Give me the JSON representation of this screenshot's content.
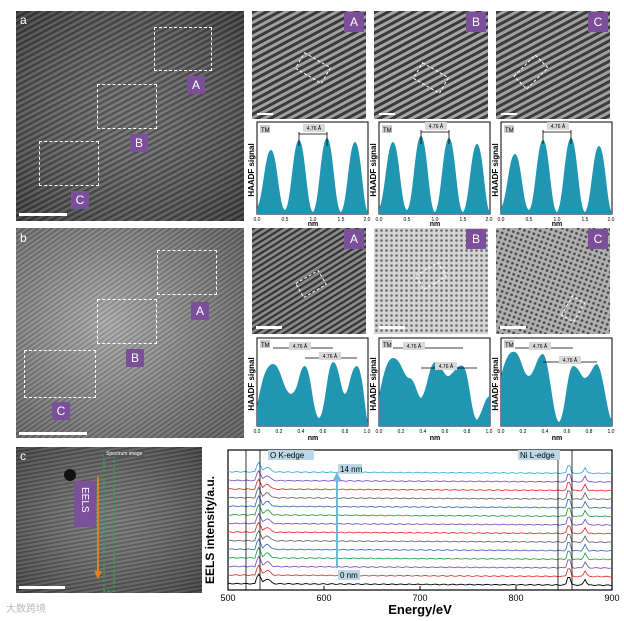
{
  "panels": {
    "a": "a",
    "b": "b",
    "c": "c"
  },
  "region_labels": [
    "A",
    "B",
    "C"
  ],
  "profile": {
    "ylabel": "HAADF signal",
    "xlabel": "nm",
    "tm": "TM",
    "spacing": "4.76 Å",
    "row_a_ticks": [
      "0.0",
      "0.5",
      "1.0",
      "1.5",
      "2.0"
    ],
    "row_b_ticks": [
      "0.0",
      "0.2",
      "0.4",
      "0.6",
      "0.8",
      "1.0"
    ]
  },
  "eels_panel": {
    "label": "EELS",
    "spectrum_tag": "Spectrum image"
  },
  "chart_data": {
    "type": "line",
    "xlabel": "Energy/eV",
    "ylabel": "EELS intensity/a.u.",
    "xlim": [
      500,
      900
    ],
    "x_ticks": [
      "500",
      "600",
      "700",
      "800",
      "900"
    ],
    "annotations": {
      "o_edge": "O K-edge",
      "ni_edge": "Ni L-edge",
      "top": "14 nm",
      "bottom": "0 nm"
    },
    "series_colors": [
      "#000000",
      "#e8383b",
      "#7b59c6",
      "#2ea44f",
      "#4472c4",
      "#6b6b6b",
      "#e8383b",
      "#7b59c6",
      "#2ea44f",
      "#4472c4",
      "#6b6b6b",
      "#e8383b",
      "#7b59c6",
      "#3fb0e0"
    ]
  },
  "watermark": "大数跨境"
}
